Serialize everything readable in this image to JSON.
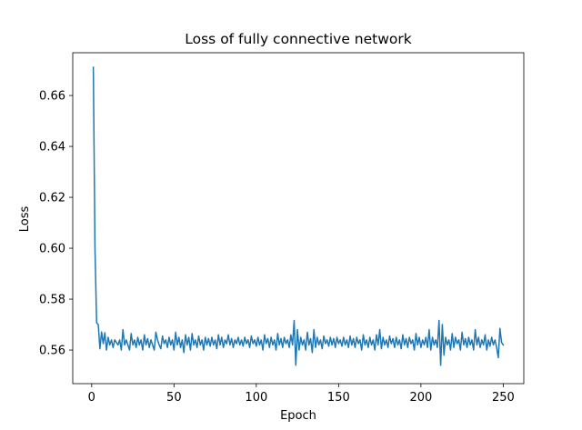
{
  "chart_data": {
    "type": "line",
    "title": "Loss of fully connective network",
    "xlabel": "Epoch",
    "ylabel": "Loss",
    "xlim": [
      -11.5,
      262.5
    ],
    "ylim": [
      0.5468,
      0.6768
    ],
    "xticks": [
      0,
      50,
      100,
      150,
      200,
      250
    ],
    "yticks": [
      0.56,
      0.58,
      0.6,
      0.62,
      0.64,
      0.66
    ],
    "ytick_labels": [
      "0.56",
      "0.58",
      "0.60",
      "0.62",
      "0.64",
      "0.66"
    ],
    "xtick_labels": [
      "0",
      "50",
      "100",
      "150",
      "200",
      "250"
    ],
    "grid": false,
    "line_color": "#1f77b4",
    "series": [
      {
        "values": [
          0.6711,
          0.6,
          0.5707,
          0.57,
          0.5605,
          0.5671,
          0.5625,
          0.5668,
          0.56,
          0.565,
          0.562,
          0.564,
          0.561,
          0.564,
          0.563,
          0.562,
          0.564,
          0.56,
          0.568,
          0.562,
          0.564,
          0.562,
          0.56,
          0.5665,
          0.562,
          0.564,
          0.561,
          0.565,
          0.562,
          0.564,
          0.56,
          0.566,
          0.562,
          0.5645,
          0.561,
          0.564,
          0.562,
          0.56,
          0.567,
          0.564,
          0.562,
          0.5605,
          0.5655,
          0.5625,
          0.564,
          0.561,
          0.565,
          0.562,
          0.564,
          0.56,
          0.567,
          0.562,
          0.565,
          0.561,
          0.564,
          0.559,
          0.566,
          0.562,
          0.565,
          0.56,
          0.5665,
          0.562,
          0.564,
          0.561,
          0.5655,
          0.562,
          0.564,
          0.56,
          0.565,
          0.562,
          0.5645,
          0.5615,
          0.565,
          0.562,
          0.564,
          0.5605,
          0.566,
          0.562,
          0.565,
          0.561,
          0.564,
          0.5625,
          0.566,
          0.562,
          0.5645,
          0.561,
          0.564,
          0.5625,
          0.565,
          0.562,
          0.564,
          0.5615,
          0.565,
          0.5625,
          0.564,
          0.561,
          0.5655,
          0.5625,
          0.564,
          0.5615,
          0.565,
          0.562,
          0.564,
          0.56,
          0.566,
          0.5625,
          0.5645,
          0.561,
          0.565,
          0.562,
          0.564,
          0.56,
          0.5665,
          0.562,
          0.5645,
          0.561,
          0.565,
          0.5625,
          0.564,
          0.561,
          0.566,
          0.562,
          0.5716,
          0.554,
          0.568,
          0.56,
          0.565,
          0.562,
          0.564,
          0.56,
          0.567,
          0.562,
          0.5645,
          0.559,
          0.568,
          0.561,
          0.565,
          0.562,
          0.564,
          0.5605,
          0.5655,
          0.5625,
          0.564,
          0.5615,
          0.565,
          0.562,
          0.5645,
          0.561,
          0.565,
          0.5625,
          0.564,
          0.5615,
          0.565,
          0.562,
          0.564,
          0.561,
          0.5655,
          0.562,
          0.5645,
          0.561,
          0.565,
          0.5625,
          0.564,
          0.56,
          0.566,
          0.562,
          0.564,
          0.561,
          0.565,
          0.562,
          0.564,
          0.56,
          0.566,
          0.562,
          0.568,
          0.5605,
          0.565,
          0.562,
          0.564,
          0.561,
          0.5655,
          0.5625,
          0.5645,
          0.561,
          0.565,
          0.562,
          0.564,
          0.5605,
          0.566,
          0.562,
          0.5645,
          0.561,
          0.565,
          0.5625,
          0.564,
          0.56,
          0.5665,
          0.562,
          0.565,
          0.561,
          0.564,
          0.562,
          0.565,
          0.561,
          0.568,
          0.56,
          0.565,
          0.562,
          0.564,
          0.561,
          0.5716,
          0.554,
          0.57,
          0.558,
          0.565,
          0.562,
          0.564,
          0.56,
          0.5665,
          0.561,
          0.565,
          0.5625,
          0.564,
          0.56,
          0.567,
          0.562,
          0.5645,
          0.561,
          0.565,
          0.562,
          0.564,
          0.56,
          0.568,
          0.562,
          0.565,
          0.561,
          0.564,
          0.562,
          0.566,
          0.56,
          0.564,
          0.5615,
          0.565,
          0.562,
          0.564,
          0.561,
          0.557,
          0.5685,
          0.563,
          0.562
        ]
      }
    ]
  }
}
